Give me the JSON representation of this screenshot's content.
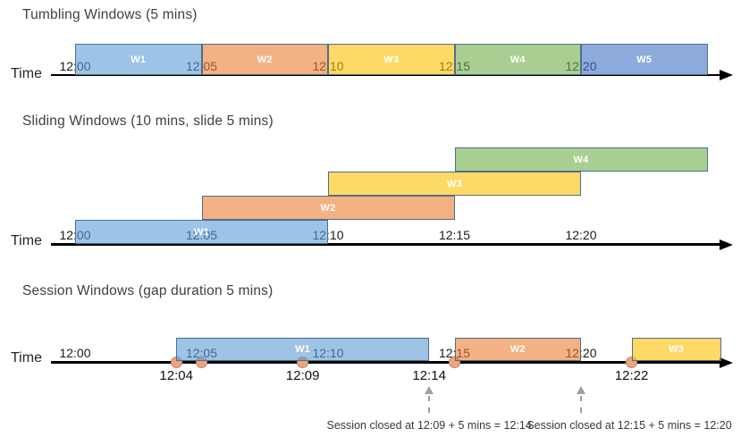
{
  "colors": {
    "window_blue": "rgba(91,155,213,0.6)",
    "window_orange": "rgba(237,125,49,0.6)",
    "window_yellow": "rgba(255,192,0,0.6)",
    "window_green": "rgba(112,173,71,0.6)",
    "window_periwinkle": "rgba(68,114,196,0.6)",
    "window_border": "#4C7086",
    "event_dot": "#F0A27C",
    "axis": "#000000",
    "close_arrow": "#A0A0A0"
  },
  "sections": [
    {
      "title": "Tumbling Windows (5 mins)",
      "time_label": "Time",
      "ticks": [
        "12:00",
        "12:05",
        "12:10",
        "12:15",
        "12:20"
      ],
      "windows": [
        {
          "label": "W1",
          "start": "12:00",
          "end": "12:05",
          "color": "window_blue"
        },
        {
          "label": "W2",
          "start": "12:05",
          "end": "12:10",
          "color": "window_orange"
        },
        {
          "label": "W3",
          "start": "12:10",
          "end": "12:15",
          "color": "window_yellow"
        },
        {
          "label": "W4",
          "start": "12:15",
          "end": "12:20",
          "color": "window_green"
        },
        {
          "label": "W5",
          "start": "12:20",
          "end": "",
          "color": "window_periwinkle"
        }
      ]
    },
    {
      "title": "Sliding Windows (10 mins, slide 5 mins)",
      "time_label": "Time",
      "ticks": [
        "12:00",
        "12:05",
        "12:10",
        "12:15",
        "12:20"
      ],
      "windows": [
        {
          "label": "W1",
          "start": "12:00",
          "end": "12:10",
          "color": "window_blue",
          "row": 0
        },
        {
          "label": "W2",
          "start": "12:05",
          "end": "12:15",
          "color": "window_orange",
          "row": 1
        },
        {
          "label": "W3",
          "start": "12:10",
          "end": "12:20",
          "color": "window_yellow",
          "row": 2
        },
        {
          "label": "W4",
          "start": "12:15",
          "end": "",
          "color": "window_green",
          "row": 3
        }
      ]
    },
    {
      "title": "Session Windows (gap duration 5 mins)",
      "time_label": "Time",
      "ticks": [
        "12:00",
        "12:05",
        "12:10",
        "12:15",
        "12:20"
      ],
      "windows": [
        {
          "label": "W1",
          "start": "12:04",
          "end": "12:14",
          "color": "window_blue"
        },
        {
          "label": "W2",
          "start": "12:15",
          "end": "12:20",
          "color": "window_orange"
        },
        {
          "label": "W3",
          "start": "12:22",
          "end": "",
          "color": "window_yellow"
        }
      ],
      "event_dots": [
        "12:04",
        "12:05",
        "12:09",
        "12:15",
        "12:22"
      ],
      "event_labels": [
        "12:04",
        "12:09",
        "12:14",
        "12:22"
      ],
      "close_annotations": [
        {
          "text": "Session closed at 12:09 + 5 mins = 12:14",
          "arrow_at": "12:14"
        },
        {
          "text": "Session closed at 12:15 + 5 mins = 12:20",
          "arrow_at": "12:20"
        }
      ]
    }
  ]
}
